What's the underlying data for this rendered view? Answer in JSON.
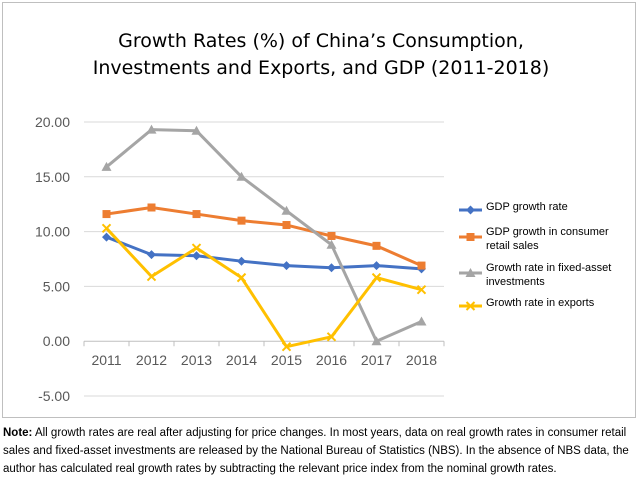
{
  "chart_data": {
    "type": "line",
    "title": "Growth Rates (%) of China’s Consumption, Investments and Exports, and GDP (2011-2018)",
    "title_lines": [
      "Growth Rates (%) of China’s Consumption,",
      "Investments and Exports, and GDP (2011-2018)"
    ],
    "x": [
      "2011",
      "2012",
      "2013",
      "2014",
      "2015",
      "2016",
      "2017",
      "2018"
    ],
    "ylim": [
      -5,
      20
    ],
    "yticks": [
      "20.00",
      "15.00",
      "10.00",
      "5.00",
      "0.00",
      "-5.00"
    ],
    "ytick_values": [
      20,
      15,
      10,
      5,
      0,
      -5
    ],
    "grid": true,
    "legend_position": "right",
    "series": [
      {
        "name": "GDP growth rate",
        "name_lines": [
          "GDP growth rate"
        ],
        "color": "#4472c4",
        "marker": "diamond",
        "values": [
          9.5,
          7.9,
          7.8,
          7.3,
          6.9,
          6.7,
          6.9,
          6.6
        ]
      },
      {
        "name": "GDP growth in consumer retail sales",
        "name_lines": [
          "GDP growth in consumer",
          "retail sales"
        ],
        "color": "#ed7d31",
        "marker": "square",
        "values": [
          11.6,
          12.2,
          11.6,
          11.0,
          10.6,
          9.6,
          8.7,
          6.9
        ]
      },
      {
        "name": "Growth rate in fixed-asset investments",
        "name_lines": [
          "Growth rate in fixed-asset",
          "investments"
        ],
        "color": "#a5a5a5",
        "marker": "triangle",
        "values": [
          15.9,
          19.3,
          19.2,
          15.0,
          11.9,
          8.8,
          0.0,
          1.8
        ]
      },
      {
        "name": "Growth rate in exports",
        "name_lines": [
          "Growth rate in exports"
        ],
        "color": "#ffc000",
        "marker": "x",
        "values": [
          10.3,
          5.9,
          8.5,
          5.8,
          -0.5,
          0.4,
          5.8,
          4.7
        ]
      }
    ]
  },
  "note": {
    "label": "Note:",
    "text": " All growth rates are real after adjusting for price changes. In most years, data on real growth rates in consumer retail sales and fixed-asset investments are released by the National Bureau of Statistics (NBS). In the absence of NBS data, the author has calculated real growth rates by subtracting the relevant price index from the nominal growth rates."
  }
}
